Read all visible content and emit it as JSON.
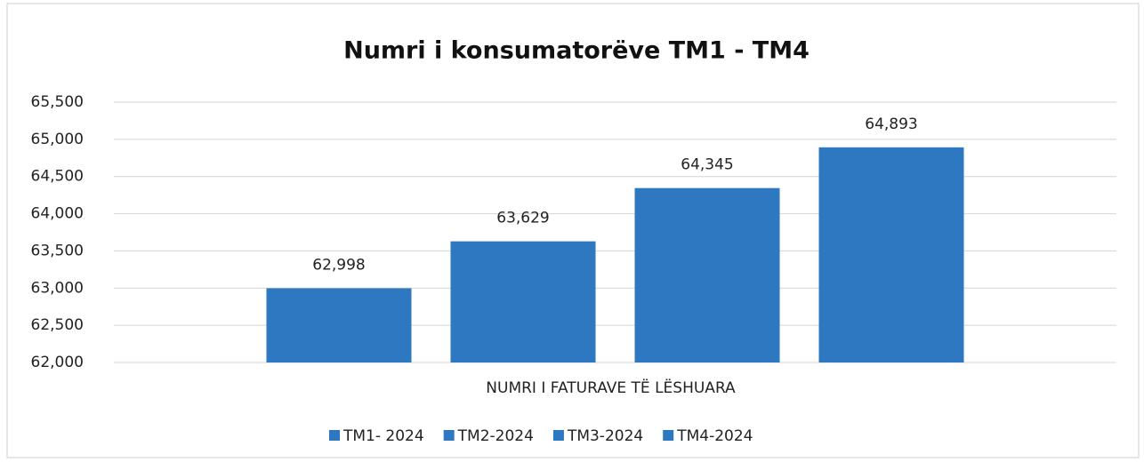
{
  "chart_data": {
    "type": "bar",
    "title": "Numri i konsumatorëve TM1 - TM4",
    "categories": [
      "NUMRI I FATURAVE TË LËSHUARA"
    ],
    "series": [
      {
        "name": "TM1- 2024",
        "color": "#2e78c2",
        "values": [
          62998
        ],
        "value_labels": [
          "62,998"
        ]
      },
      {
        "name": "TM2-2024",
        "color": "#2e78c2",
        "values": [
          63629
        ],
        "value_labels": [
          "63,629"
        ]
      },
      {
        "name": "TM3-2024",
        "color": "#2e78c2",
        "values": [
          64345
        ],
        "value_labels": [
          "64,345"
        ]
      },
      {
        "name": "TM4-2024",
        "color": "#2e78c2",
        "values": [
          64893
        ],
        "value_labels": [
          "64,893"
        ]
      }
    ],
    "ylim": [
      62000,
      65500
    ],
    "yticks": [
      {
        "value": 62000,
        "label": "62,000"
      },
      {
        "value": 62500,
        "label": "62,500"
      },
      {
        "value": 63000,
        "label": "63,000"
      },
      {
        "value": 63500,
        "label": "63,500"
      },
      {
        "value": 64000,
        "label": "64,000"
      },
      {
        "value": 64500,
        "label": "64,500"
      },
      {
        "value": 65000,
        "label": "65,000"
      },
      {
        "value": 65500,
        "label": "65,500"
      }
    ],
    "grid": true,
    "legend": "bottom"
  }
}
